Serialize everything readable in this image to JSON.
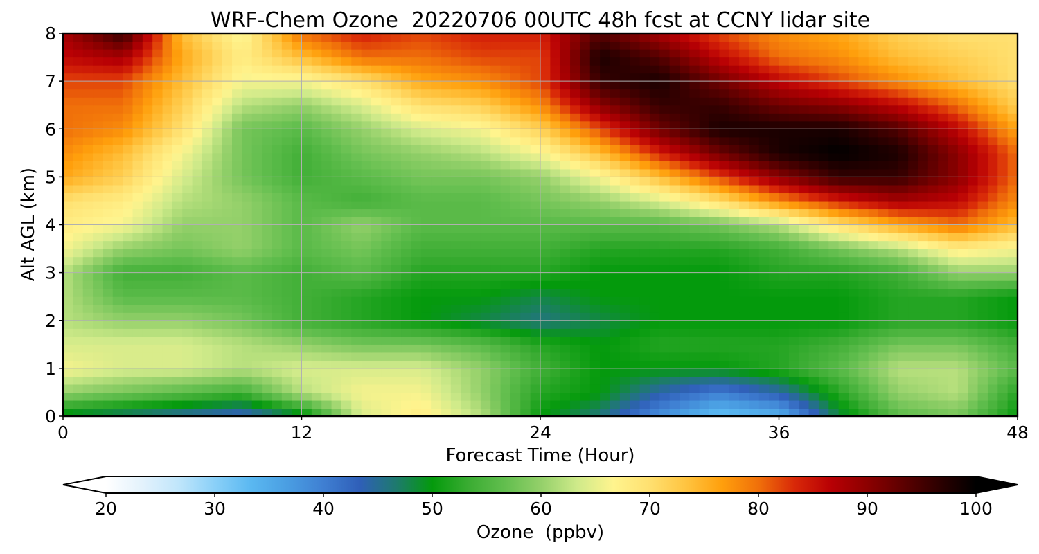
{
  "chart_data": {
    "type": "heatmap",
    "title": "WRF-Chem Ozone  20220706 00UTC 48h fcst at CCNY lidar site",
    "xlabel": "Forecast Time (Hour)",
    "ylabel": "Alt AGL (km)",
    "xlim": [
      0,
      48
    ],
    "ylim": [
      0,
      8
    ],
    "xticks": [
      0,
      12,
      24,
      36,
      48
    ],
    "yticks": [
      0,
      1,
      2,
      3,
      4,
      5,
      6,
      7,
      8
    ],
    "grid": true,
    "x": [
      0,
      3,
      6,
      9,
      12,
      15,
      18,
      21,
      24,
      27,
      30,
      33,
      36,
      39,
      42,
      45,
      48
    ],
    "y": [
      0,
      0.5,
      1,
      1.5,
      2,
      2.5,
      3,
      3.5,
      4,
      4.5,
      5,
      5.5,
      6,
      6.5,
      7,
      7.5,
      8
    ],
    "z": [
      [
        48,
        46,
        44,
        42,
        48,
        64,
        68,
        62,
        50,
        46,
        38,
        32,
        34,
        48,
        56,
        58,
        50
      ],
      [
        60,
        58,
        56,
        54,
        62,
        66,
        66,
        60,
        52,
        50,
        44,
        40,
        44,
        52,
        60,
        62,
        52
      ],
      [
        66,
        64,
        64,
        62,
        64,
        64,
        64,
        60,
        54,
        50,
        50,
        50,
        52,
        56,
        62,
        62,
        56
      ],
      [
        64,
        64,
        64,
        62,
        60,
        58,
        58,
        56,
        52,
        50,
        52,
        52,
        52,
        54,
        58,
        58,
        54
      ],
      [
        62,
        60,
        60,
        58,
        54,
        52,
        50,
        48,
        46,
        48,
        50,
        50,
        50,
        50,
        52,
        52,
        50
      ],
      [
        62,
        56,
        56,
        56,
        54,
        52,
        50,
        50,
        48,
        50,
        50,
        50,
        50,
        50,
        52,
        52,
        50
      ],
      [
        62,
        54,
        54,
        56,
        54,
        56,
        52,
        52,
        52,
        50,
        50,
        50,
        52,
        52,
        54,
        60,
        60
      ],
      [
        66,
        60,
        58,
        60,
        56,
        58,
        54,
        54,
        54,
        52,
        52,
        52,
        54,
        58,
        62,
        68,
        66
      ],
      [
        68,
        66,
        60,
        60,
        56,
        60,
        56,
        56,
        56,
        56,
        56,
        58,
        62,
        70,
        76,
        80,
        74
      ],
      [
        70,
        68,
        62,
        60,
        56,
        54,
        56,
        56,
        58,
        60,
        64,
        70,
        78,
        84,
        88,
        86,
        78
      ],
      [
        76,
        72,
        64,
        58,
        54,
        56,
        58,
        58,
        60,
        66,
        74,
        82,
        90,
        96,
        96,
        90,
        80
      ],
      [
        78,
        74,
        66,
        58,
        54,
        58,
        60,
        62,
        66,
        74,
        84,
        92,
        98,
        100,
        98,
        90,
        80
      ],
      [
        80,
        78,
        70,
        58,
        56,
        60,
        64,
        66,
        72,
        82,
        92,
        98,
        98,
        98,
        94,
        86,
        76
      ],
      [
        80,
        80,
        72,
        62,
        60,
        64,
        70,
        72,
        78,
        90,
        96,
        96,
        92,
        90,
        86,
        80,
        72
      ],
      [
        82,
        82,
        74,
        66,
        66,
        70,
        76,
        78,
        82,
        96,
        98,
        92,
        86,
        82,
        78,
        74,
        70
      ],
      [
        86,
        88,
        76,
        68,
        74,
        80,
        80,
        82,
        82,
        98,
        94,
        86,
        80,
        78,
        74,
        72,
        70
      ],
      [
        88,
        96,
        74,
        66,
        80,
        84,
        82,
        84,
        84,
        94,
        88,
        82,
        78,
        76,
        72,
        70,
        70
      ]
    ],
    "colorbar": {
      "label": "Ozone  (ppbv)",
      "min": 20,
      "max": 100,
      "ticks": [
        20,
        30,
        40,
        50,
        60,
        70,
        80,
        90,
        100
      ],
      "extend": "both",
      "colors": [
        "#ffffff",
        "#e3f2fc",
        "#c0e6fb",
        "#8ad0f8",
        "#5ab8f1",
        "#4a9ee2",
        "#3f7fd2",
        "#2f5fb8",
        "#1e7a6e",
        "#049a0c",
        "#3aac32",
        "#62be4e",
        "#94d06a",
        "#cfea8a",
        "#fff48e",
        "#ffe070",
        "#ffc440",
        "#ff9f0c",
        "#f0700a",
        "#d82808",
        "#b80004",
        "#8c0000",
        "#5c0000",
        "#2c0000",
        "#000000"
      ]
    }
  }
}
